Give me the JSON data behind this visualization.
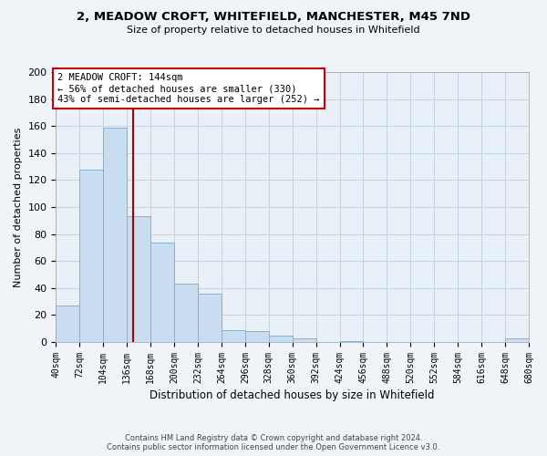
{
  "title": "2, MEADOW CROFT, WHITEFIELD, MANCHESTER, M45 7ND",
  "subtitle": "Size of property relative to detached houses in Whitefield",
  "xlabel": "Distribution of detached houses by size in Whitefield",
  "ylabel": "Number of detached properties",
  "bar_color": "#c8ddf0",
  "bar_edge_color": "#8ab0cc",
  "background_color": "#f0f4f8",
  "plot_bg_color": "#e8f0f8",
  "grid_color": "#c5d5e5",
  "property_line_x": 144,
  "property_line_color": "#aa0000",
  "annotation_line1": "2 MEADOW CROFT: 144sqm",
  "annotation_line2": "← 56% of detached houses are smaller (330)",
  "annotation_line3": "43% of semi-detached houses are larger (252) →",
  "annotation_box_color": "#ffffff",
  "annotation_box_edge": "#cc0000",
  "footer_line1": "Contains HM Land Registry data © Crown copyright and database right 2024.",
  "footer_line2": "Contains public sector information licensed under the Open Government Licence v3.0.",
  "bin_edges": [
    40,
    72,
    104,
    136,
    168,
    200,
    232,
    264,
    296,
    328,
    360,
    392,
    424,
    456,
    488,
    520,
    552,
    584,
    616,
    648,
    680
  ],
  "counts": [
    27,
    128,
    159,
    93,
    74,
    43,
    36,
    9,
    8,
    5,
    3,
    0,
    1,
    0,
    0,
    0,
    0,
    0,
    0,
    3
  ],
  "ylim": [
    0,
    200
  ],
  "xlim": [
    40,
    680
  ]
}
